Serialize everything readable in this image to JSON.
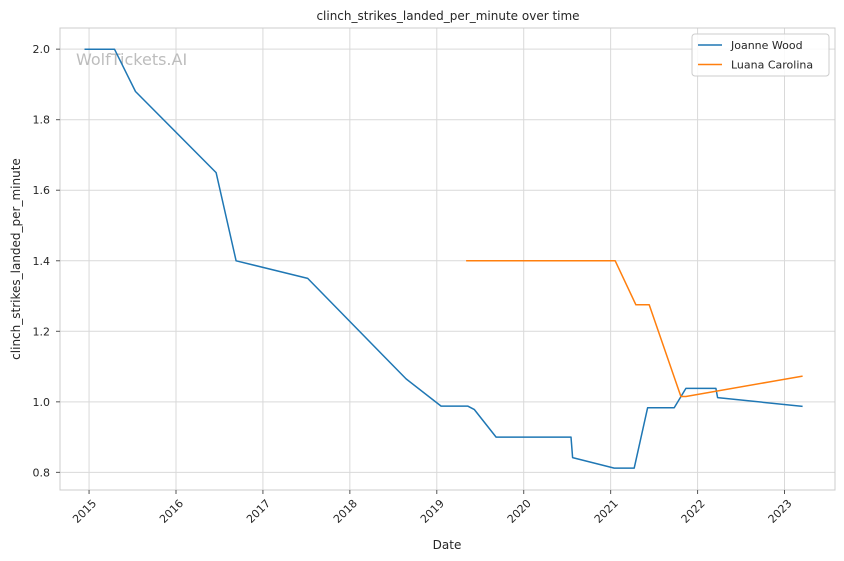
{
  "chart_data": {
    "type": "line",
    "title": "clinch_strikes_landed_per_minute over time",
    "xlabel": "Date",
    "ylabel": "clinch_strikes_landed_per_minute",
    "watermark": "WolfTickets.AI",
    "x_ticks": [
      "2015",
      "2016",
      "2017",
      "2018",
      "2019",
      "2020",
      "2021",
      "2022",
      "2023"
    ],
    "y_ticks": [
      "0.8",
      "1.0",
      "1.2",
      "1.4",
      "1.6",
      "1.8",
      "2.0"
    ],
    "xlim": [
      "2014-09-01",
      "2023-08-01"
    ],
    "ylim": [
      0.75,
      2.06
    ],
    "grid": true,
    "legend_position": "top-right",
    "series": [
      {
        "name": "Joanne Wood",
        "color": "#1f77b4",
        "points": [
          [
            "2014-12-13",
            2.0
          ],
          [
            "2015-04-18",
            2.0
          ],
          [
            "2015-07-15",
            1.88
          ],
          [
            "2016-06-18",
            1.65
          ],
          [
            "2016-09-10",
            1.4
          ],
          [
            "2017-07-08",
            1.35
          ],
          [
            "2018-08-25",
            1.065
          ],
          [
            "2019-01-19",
            0.988
          ],
          [
            "2019-05-11",
            0.988
          ],
          [
            "2019-06-08",
            0.978
          ],
          [
            "2019-09-07",
            0.9
          ],
          [
            "2020-07-18",
            0.9
          ],
          [
            "2020-07-25",
            0.842
          ],
          [
            "2021-01-16",
            0.812
          ],
          [
            "2021-04-10",
            0.812
          ],
          [
            "2021-06-05",
            0.983
          ],
          [
            "2021-09-25",
            0.983
          ],
          [
            "2021-11-13",
            1.038
          ],
          [
            "2022-03-19",
            1.038
          ],
          [
            "2022-03-26",
            1.012
          ],
          [
            "2023-03-18",
            0.987
          ]
        ]
      },
      {
        "name": "Luana Carolina",
        "color": "#ff7f0e",
        "points": [
          [
            "2019-05-04",
            1.4
          ],
          [
            "2021-01-20",
            1.4
          ],
          [
            "2021-04-17",
            1.275
          ],
          [
            "2021-06-12",
            1.275
          ],
          [
            "2021-10-23",
            1.015
          ],
          [
            "2021-11-13",
            1.015
          ],
          [
            "2023-03-18",
            1.073
          ]
        ]
      }
    ]
  }
}
